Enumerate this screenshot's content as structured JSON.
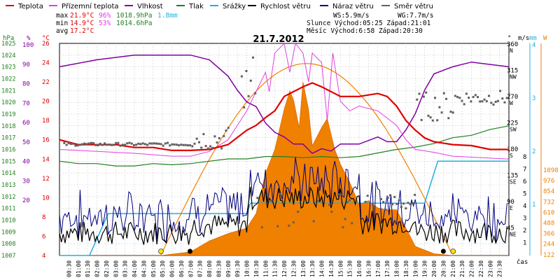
{
  "legend": [
    {
      "label": "Teplota",
      "color": "#e00000"
    },
    {
      "label": "Přízemní teplota",
      "color": "#e040e0"
    },
    {
      "label": "Vlhkost",
      "color": "#8000a0"
    },
    {
      "label": "Tlak",
      "color": "#208020"
    },
    {
      "label": "Srážky",
      "color": "#20b0e0"
    },
    {
      "label": "Rychlost větru",
      "color": "#000000"
    },
    {
      "label": "Náraz větru",
      "color": "#000080"
    },
    {
      "label": "Směr větru",
      "color": "#606060"
    }
  ],
  "stats": {
    "max_label": "max",
    "max_temp": "21.9°C",
    "max_hum": "96%",
    "max_press": "1018.9hPa",
    "max_rain": "1.8mm",
    "min_label": "min",
    "min_temp": "14.9°C",
    "min_hum": "53%",
    "min_press": "1014.6hPa",
    "avg_label": "avg",
    "avg_temp": "17.2°C",
    "ws": "WS:5.9m/s",
    "wg": "WG:7.7m/s",
    "sun": "Slunce Východ:05:25  Západ:21:01",
    "moon": "Měsíc  Východ:6:58   Západ:20:30"
  },
  "chart_data": {
    "type": "line",
    "title": "21.7.2012",
    "xlabel": "čas",
    "x_ticks": [
      "00:30",
      "01:00",
      "01:30",
      "02:00",
      "02:30",
      "03:00",
      "03:30",
      "04:00",
      "04:30",
      "05:00",
      "05:30",
      "06:00",
      "06:30",
      "07:00",
      "07:30",
      "08:00",
      "08:30",
      "09:00",
      "09:30",
      "10:00",
      "10:30",
      "11:00",
      "11:30",
      "12:00",
      "12:30",
      "13:00",
      "13:30",
      "14:00",
      "14:30",
      "15:00",
      "15:30",
      "16:00",
      "16:30",
      "17:00",
      "17:30",
      "18:00",
      "18:30",
      "19:00",
      "19:30",
      "20:00",
      "20:30",
      "21:00",
      "21:30",
      "22:00",
      "22:30",
      "23:00",
      "23:30"
    ],
    "axes": {
      "hpa": {
        "label": "hPa",
        "min": 1007,
        "max": 1025,
        "ticks": [
          "1025",
          "1024",
          "1023",
          "1022",
          "1021",
          "1020",
          "1019",
          "1018",
          "1017",
          "1016",
          "1015",
          "1014",
          "1013",
          "1012",
          "1011",
          "1010",
          "1009",
          "1008",
          "1007"
        ],
        "color": "#208020"
      },
      "pct": {
        "label": "%",
        "min": 20,
        "max": 100,
        "ticks": [
          "100",
          "90",
          "80",
          "70",
          "60",
          "50",
          "40",
          "30",
          "20",
          "10",
          "0"
        ],
        "color": "#8000a0"
      },
      "degc": {
        "label": "°C",
        "min": 4,
        "max": 26,
        "ticks": [
          "26",
          "24",
          "22",
          "20",
          "18",
          "16",
          "14",
          "12",
          "10",
          "8",
          "6",
          "4"
        ],
        "color": "#e00000"
      },
      "deg": {
        "label": "°",
        "ticks": [
          "360",
          "315",
          "270",
          "225",
          "180",
          "135",
          "90",
          "45"
        ],
        "dirs": [
          "N",
          "NW",
          "W",
          "SW",
          "S",
          "SE",
          "E",
          "NE"
        ]
      },
      "mm": {
        "label": "mm",
        "ticks": [
          "4",
          "3",
          "2",
          "1"
        ],
        "color": "#20b0e0"
      },
      "ms": {
        "label": "m/s",
        "ticks": [
          "8",
          "7",
          "6",
          "5",
          "4",
          "3",
          "2",
          "1"
        ]
      },
      "w": {
        "label": "W",
        "ticks": [
          "1098",
          "976",
          "854",
          "732",
          "610",
          "488",
          "366",
          "244",
          "122"
        ],
        "color": "#f08000"
      }
    },
    "series": [
      {
        "name": "Teplota",
        "unit": "°C",
        "t": [
          0,
          1,
          2,
          3,
          4,
          5,
          6,
          7,
          8,
          9,
          10,
          10.5,
          11,
          11.5,
          12,
          12.5,
          13,
          13.5,
          14,
          15,
          16,
          17,
          17.5,
          18,
          18.5,
          19,
          19.5,
          20,
          21,
          22,
          23,
          24
        ],
        "v": [
          16,
          15.5,
          15.5,
          15.5,
          15.2,
          15.2,
          14.9,
          14.9,
          15,
          15.5,
          17,
          17.5,
          18.3,
          19,
          20.5,
          21,
          21.5,
          21.9,
          21.5,
          20.5,
          20.5,
          20.8,
          20.5,
          19.5,
          18,
          17,
          16.2,
          15.8,
          15.5,
          15.4,
          15,
          15
        ]
      },
      {
        "name": "Přízemní teplota",
        "unit": "°C",
        "t": [
          0,
          2,
          4,
          6,
          7,
          8,
          9,
          9.5,
          10,
          10.5,
          11,
          11.2,
          11.5,
          12,
          12.3,
          12.6,
          13,
          13.3,
          13.5,
          14,
          14.3,
          14.6,
          15,
          15.5,
          16,
          17,
          18,
          18.5,
          19,
          20,
          21,
          22,
          23,
          24
        ],
        "v": [
          15,
          14.8,
          14.6,
          14.3,
          14.3,
          14.8,
          16,
          17.5,
          19,
          21,
          23,
          21,
          25,
          26,
          23,
          26,
          25,
          22,
          25,
          24,
          18,
          25,
          20,
          19,
          19.5,
          19,
          17.5,
          16,
          15,
          14.7,
          14.3,
          14.2,
          14.1,
          14
        ]
      },
      {
        "name": "Vlhkost",
        "unit": "%",
        "t": [
          0,
          2,
          4,
          6,
          7,
          8,
          9,
          9.5,
          10,
          10.5,
          11,
          11.5,
          12,
          12.5,
          13,
          13.5,
          14,
          14.5,
          15,
          16,
          17,
          17.5,
          18,
          18.5,
          19,
          19.5,
          20,
          21,
          22,
          23,
          24
        ],
        "v": [
          90,
          93,
          95,
          95,
          95,
          93,
          86,
          80,
          75,
          73,
          66,
          62,
          60,
          57,
          57,
          53,
          55,
          54,
          57,
          57,
          60,
          58,
          58,
          63,
          70,
          80,
          87,
          90,
          92,
          91,
          90
        ]
      },
      {
        "name": "Tlak",
        "unit": "hPa",
        "t": [
          0,
          1,
          2,
          3,
          4,
          5,
          6,
          7,
          8,
          9,
          10,
          11,
          12,
          13,
          14,
          15,
          16,
          17,
          18,
          19,
          20,
          21,
          22,
          23,
          24
        ],
        "v": [
          1015,
          1014.8,
          1014.8,
          1014.6,
          1014.6,
          1014.8,
          1014.7,
          1014.8,
          1015,
          1015.2,
          1015.2,
          1015.4,
          1015.4,
          1015.3,
          1015.4,
          1015.3,
          1015.4,
          1015.7,
          1016,
          1016.2,
          1016.5,
          1017,
          1017.2,
          1017.7,
          1018
        ]
      },
      {
        "name": "Srážky",
        "unit": "mm",
        "t": [
          0,
          1.6,
          2.6,
          10,
          10.2,
          19.5,
          20.2,
          20.3,
          24
        ],
        "v": [
          0,
          0,
          0.8,
          0.8,
          1.0,
          1.0,
          1.8,
          1.8,
          1.8
        ]
      },
      {
        "name": "Sluneční záření",
        "unit": "W",
        "t": [
          0,
          5.4,
          7,
          8,
          9,
          10,
          10.5,
          11,
          11.5,
          12,
          12.3,
          12.5,
          12.8,
          13,
          13.3,
          13.5,
          14,
          14.3,
          14.7,
          15,
          15.5,
          16,
          16.5,
          17,
          17.5,
          18,
          19,
          20,
          21,
          24
        ],
        "v": [
          0,
          0,
          20,
          80,
          120,
          150,
          230,
          450,
          580,
          800,
          900,
          850,
          700,
          950,
          800,
          600,
          700,
          750,
          580,
          500,
          400,
          280,
          300,
          260,
          250,
          250,
          50,
          10,
          0,
          0
        ]
      }
    ]
  }
}
